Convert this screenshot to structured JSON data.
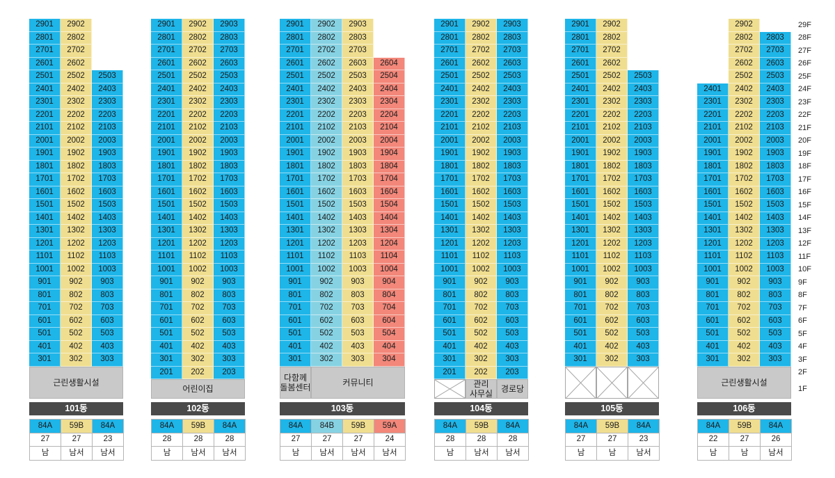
{
  "types": {
    "84A": "#1eb5e9",
    "84B": "#86d2e3",
    "59B": "#f0de90",
    "59A": "#f2877a"
  },
  "colors": {
    "facility": "#c9c9c9",
    "building_bar": "#4a4a4a"
  },
  "floor_labels": [
    "29F",
    "28F",
    "27F",
    "26F",
    "25F",
    "24F",
    "23F",
    "22F",
    "21F",
    "20F",
    "19F",
    "18F",
    "17F",
    "16F",
    "15F",
    "14F",
    "13F",
    "12F",
    "11F",
    "10F",
    "9F",
    "8F",
    "7F",
    "6F",
    "5F",
    "4F",
    "3F",
    "2F",
    "1F"
  ],
  "buildings": [
    {
      "name": "101동",
      "lines": [
        {
          "type": "84A",
          "count": "27",
          "direction": "남",
          "units": [
            "2901",
            "2801",
            "2701",
            "2601",
            "2501",
            "2401",
            "2301",
            "2201",
            "2101",
            "2001",
            "1901",
            "1801",
            "1701",
            "1601",
            "1501",
            "1401",
            "1301",
            "1201",
            "1101",
            "1001",
            "901",
            "801",
            "701",
            "601",
            "501",
            "401",
            "301"
          ]
        },
        {
          "type": "59B",
          "count": "27",
          "direction": "남서",
          "units": [
            "2902",
            "2802",
            "2702",
            "2602",
            "2502",
            "2402",
            "2302",
            "2202",
            "2102",
            "2002",
            "1902",
            "1802",
            "1702",
            "1602",
            "1502",
            "1402",
            "1302",
            "1202",
            "1102",
            "1002",
            "902",
            "802",
            "702",
            "602",
            "502",
            "402",
            "302"
          ]
        },
        {
          "type": "84A",
          "count": "23",
          "direction": "남서",
          "units": [
            "2503",
            "2403",
            "2303",
            "2203",
            "2103",
            "2003",
            "1903",
            "1803",
            "1703",
            "1603",
            "1503",
            "1403",
            "1303",
            "1203",
            "1103",
            "1003",
            "903",
            "803",
            "703",
            "603",
            "503",
            "403",
            "303"
          ]
        }
      ],
      "ground": [
        {
          "label": [
            "근린생활시설"
          ],
          "lines": [
            1,
            3
          ],
          "floors": [
            1,
            2
          ]
        }
      ]
    },
    {
      "name": "102동",
      "lines": [
        {
          "type": "84A",
          "count": "28",
          "direction": "남",
          "units": [
            "2901",
            "2801",
            "2701",
            "2601",
            "2501",
            "2401",
            "2301",
            "2201",
            "2101",
            "2001",
            "1901",
            "1801",
            "1701",
            "1601",
            "1501",
            "1401",
            "1301",
            "1201",
            "1101",
            "1001",
            "901",
            "801",
            "701",
            "601",
            "501",
            "401",
            "301",
            "201"
          ]
        },
        {
          "type": "59B",
          "count": "28",
          "direction": "남서",
          "units": [
            "2902",
            "2802",
            "2702",
            "2602",
            "2502",
            "2402",
            "2302",
            "2202",
            "2102",
            "2002",
            "1902",
            "1802",
            "1702",
            "1602",
            "1502",
            "1402",
            "1302",
            "1202",
            "1102",
            "1002",
            "902",
            "802",
            "702",
            "602",
            "502",
            "402",
            "302",
            "202"
          ]
        },
        {
          "type": "84A",
          "count": "28",
          "direction": "남서",
          "units": [
            "2903",
            "2803",
            "2703",
            "2603",
            "2503",
            "2403",
            "2303",
            "2203",
            "2103",
            "2003",
            "1903",
            "1803",
            "1703",
            "1603",
            "1503",
            "1403",
            "1303",
            "1203",
            "1103",
            "1003",
            "903",
            "803",
            "703",
            "603",
            "503",
            "403",
            "303",
            "203"
          ]
        }
      ],
      "ground": [
        {
          "label": [
            "어린이집"
          ],
          "lines": [
            1,
            3
          ],
          "floors": [
            1,
            1
          ]
        }
      ]
    },
    {
      "name": "103동",
      "lines": [
        {
          "type": "84A",
          "count": "27",
          "direction": "남",
          "units": [
            "2901",
            "2801",
            "2701",
            "2601",
            "2501",
            "2401",
            "2301",
            "2201",
            "2101",
            "2001",
            "1901",
            "1801",
            "1701",
            "1601",
            "1501",
            "1401",
            "1301",
            "1201",
            "1101",
            "1001",
            "901",
            "801",
            "701",
            "601",
            "501",
            "401",
            "301"
          ]
        },
        {
          "type": "84B",
          "count": "27",
          "direction": "남서",
          "units": [
            "2902",
            "2802",
            "2702",
            "2602",
            "2502",
            "2402",
            "2302",
            "2202",
            "2102",
            "2002",
            "1902",
            "1802",
            "1702",
            "1602",
            "1502",
            "1402",
            "1302",
            "1202",
            "1102",
            "1002",
            "902",
            "802",
            "702",
            "602",
            "502",
            "402",
            "302"
          ]
        },
        {
          "type": "59B",
          "count": "27",
          "direction": "남서",
          "units": [
            "2903",
            "2803",
            "2703",
            "2603",
            "2503",
            "2403",
            "2303",
            "2203",
            "2103",
            "2003",
            "1903",
            "1803",
            "1703",
            "1603",
            "1503",
            "1403",
            "1303",
            "1203",
            "1103",
            "1003",
            "903",
            "803",
            "703",
            "603",
            "503",
            "403",
            "303"
          ]
        },
        {
          "type": "59A",
          "count": "24",
          "direction": "남서",
          "units": [
            "2604",
            "2504",
            "2404",
            "2304",
            "2204",
            "2104",
            "2004",
            "1904",
            "1804",
            "1704",
            "1604",
            "1504",
            "1404",
            "1304",
            "1204",
            "1104",
            "1004",
            "904",
            "804",
            "704",
            "604",
            "504",
            "404",
            "304"
          ]
        }
      ],
      "ground": [
        {
          "label": [
            "다함께",
            "돌봄센터"
          ],
          "lines": [
            1,
            1
          ],
          "floors": [
            1,
            2
          ]
        },
        {
          "label": [
            "커뮤니티"
          ],
          "lines": [
            2,
            4
          ],
          "floors": [
            1,
            2
          ]
        }
      ]
    },
    {
      "name": "104동",
      "lines": [
        {
          "type": "84A",
          "count": "28",
          "direction": "남",
          "units": [
            "2901",
            "2801",
            "2701",
            "2601",
            "2501",
            "2401",
            "2301",
            "2201",
            "2101",
            "2001",
            "1901",
            "1801",
            "1701",
            "1601",
            "1501",
            "1401",
            "1301",
            "1201",
            "1101",
            "1001",
            "901",
            "801",
            "701",
            "601",
            "501",
            "401",
            "301",
            "201"
          ]
        },
        {
          "type": "59B",
          "count": "28",
          "direction": "남서",
          "units": [
            "2902",
            "2802",
            "2702",
            "2602",
            "2502",
            "2402",
            "2302",
            "2202",
            "2102",
            "2002",
            "1902",
            "1802",
            "1702",
            "1602",
            "1502",
            "1402",
            "1302",
            "1202",
            "1102",
            "1002",
            "902",
            "802",
            "702",
            "602",
            "502",
            "402",
            "302",
            "202"
          ]
        },
        {
          "type": "84A",
          "count": "28",
          "direction": "남서",
          "units": [
            "2903",
            "2803",
            "2703",
            "2603",
            "2503",
            "2403",
            "2303",
            "2203",
            "2103",
            "2003",
            "1903",
            "1803",
            "1703",
            "1603",
            "1503",
            "1403",
            "1303",
            "1203",
            "1103",
            "1003",
            "903",
            "803",
            "703",
            "603",
            "503",
            "403",
            "303",
            "203"
          ]
        }
      ],
      "ground": [
        {
          "icon": "piloti-x-icon",
          "lines": [
            1,
            1
          ],
          "floors": [
            1,
            1
          ]
        },
        {
          "label": [
            "관리",
            "사무실"
          ],
          "lines": [
            2,
            2
          ],
          "floors": [
            1,
            1
          ]
        },
        {
          "label": [
            "경로당"
          ],
          "lines": [
            3,
            3
          ],
          "floors": [
            1,
            1
          ]
        }
      ]
    },
    {
      "name": "105동",
      "lines": [
        {
          "type": "84A",
          "count": "27",
          "direction": "남",
          "units": [
            "2901",
            "2801",
            "2701",
            "2601",
            "2501",
            "2401",
            "2301",
            "2201",
            "2101",
            "2001",
            "1901",
            "1801",
            "1701",
            "1601",
            "1501",
            "1401",
            "1301",
            "1201",
            "1101",
            "1001",
            "901",
            "801",
            "701",
            "601",
            "501",
            "401",
            "301"
          ]
        },
        {
          "type": "59B",
          "count": "27",
          "direction": "남",
          "units": [
            "2902",
            "2802",
            "2702",
            "2602",
            "2502",
            "2402",
            "2302",
            "2202",
            "2102",
            "2002",
            "1902",
            "1802",
            "1702",
            "1602",
            "1502",
            "1402",
            "1302",
            "1202",
            "1102",
            "1002",
            "902",
            "802",
            "702",
            "602",
            "502",
            "402",
            "302"
          ]
        },
        {
          "type": "84A",
          "count": "23",
          "direction": "남서",
          "units": [
            "2503",
            "2403",
            "2303",
            "2203",
            "2103",
            "2003",
            "1903",
            "1803",
            "1703",
            "1603",
            "1503",
            "1403",
            "1303",
            "1203",
            "1103",
            "1003",
            "903",
            "803",
            "703",
            "603",
            "503",
            "403",
            "303"
          ]
        }
      ],
      "ground": [
        {
          "icon": "piloti-x-icon",
          "lines": [
            1,
            1
          ],
          "floors": [
            1,
            2
          ]
        },
        {
          "icon": "piloti-x-icon",
          "lines": [
            2,
            2
          ],
          "floors": [
            1,
            2
          ]
        },
        {
          "icon": "piloti-x-icon",
          "lines": [
            3,
            3
          ],
          "floors": [
            1,
            2
          ]
        }
      ]
    },
    {
      "name": "106동",
      "lines": [
        {
          "type": "84A",
          "count": "22",
          "direction": "남",
          "units": [
            "2401",
            "2301",
            "2201",
            "2101",
            "2001",
            "1901",
            "1801",
            "1701",
            "1601",
            "1501",
            "1401",
            "1301",
            "1201",
            "1101",
            "1001",
            "901",
            "801",
            "701",
            "601",
            "501",
            "401",
            "301"
          ]
        },
        {
          "type": "59B",
          "count": "27",
          "direction": "남",
          "units": [
            "2902",
            "2802",
            "2702",
            "2602",
            "2502",
            "2402",
            "2302",
            "2202",
            "2102",
            "2002",
            "1902",
            "1802",
            "1702",
            "1602",
            "1502",
            "1402",
            "1302",
            "1202",
            "1102",
            "1002",
            "902",
            "802",
            "702",
            "602",
            "502",
            "402",
            "302"
          ]
        },
        {
          "type": "84A",
          "count": "26",
          "direction": "남서",
          "units": [
            "2803",
            "2703",
            "2603",
            "2503",
            "2403",
            "2303",
            "2203",
            "2103",
            "2003",
            "1903",
            "1803",
            "1703",
            "1603",
            "1503",
            "1403",
            "1303",
            "1203",
            "1103",
            "1003",
            "903",
            "803",
            "703",
            "603",
            "503",
            "403",
            "303"
          ]
        }
      ],
      "ground": [
        {
          "label": [
            "근린생활시설"
          ],
          "lines": [
            1,
            3
          ],
          "floors": [
            1,
            2
          ]
        }
      ]
    }
  ]
}
